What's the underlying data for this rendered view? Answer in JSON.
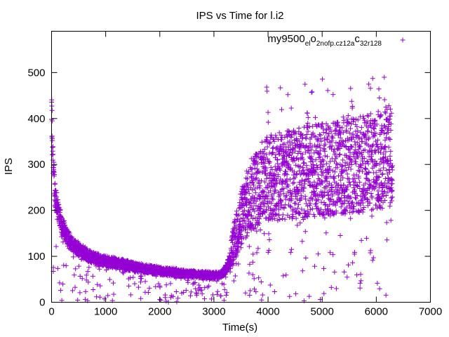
{
  "chart_data": {
    "type": "scatter",
    "title": "IPS vs Time for l.i2",
    "xlabel": "Time(s)",
    "ylabel": "IPS",
    "xlim": [
      0,
      7000
    ],
    "ylim": [
      0,
      590
    ],
    "xticks": [
      0,
      1000,
      2000,
      3000,
      4000,
      5000,
      6000,
      7000
    ],
    "yticks": [
      0,
      100,
      200,
      300,
      400,
      500
    ],
    "xtick_labels": [
      "0",
      "1000",
      "2000",
      "3000",
      "4000",
      "5000",
      "6000",
      "7000"
    ],
    "ytick_labels": [
      "0",
      "100",
      "200",
      "300",
      "400",
      "500"
    ],
    "grid": false,
    "legend_position": "top-right",
    "marker": "+",
    "series": [
      {
        "name": "my9500_el_o2nofp.cz12a_c32r128",
        "legend_parts": [
          "my9500",
          "el",
          "o",
          "2nofp.cz12a",
          "c",
          "32r128"
        ],
        "color": "#9400d3",
        "trend": {
          "x": [
            0,
            30,
            60,
            100,
            150,
            200,
            300,
            400,
            500,
            700,
            900,
            1200,
            1600,
            2000,
            2500,
            3000,
            3150,
            3250,
            3350,
            3450,
            3550,
            3700,
            3850,
            4000,
            4300,
            4700,
            5200,
            5700,
            6000,
            6300
          ],
          "y": [
            420,
            300,
            240,
            210,
            185,
            165,
            140,
            125,
            115,
            100,
            92,
            85,
            75,
            68,
            62,
            58,
            60,
            80,
            120,
            160,
            200,
            235,
            255,
            270,
            275,
            285,
            290,
            300,
            310,
            320
          ]
        },
        "scatter_summary": {
          "point_count": 3800,
          "data_end_x": 6300,
          "max_y": 490,
          "min_y": 0
        }
      }
    ]
  }
}
